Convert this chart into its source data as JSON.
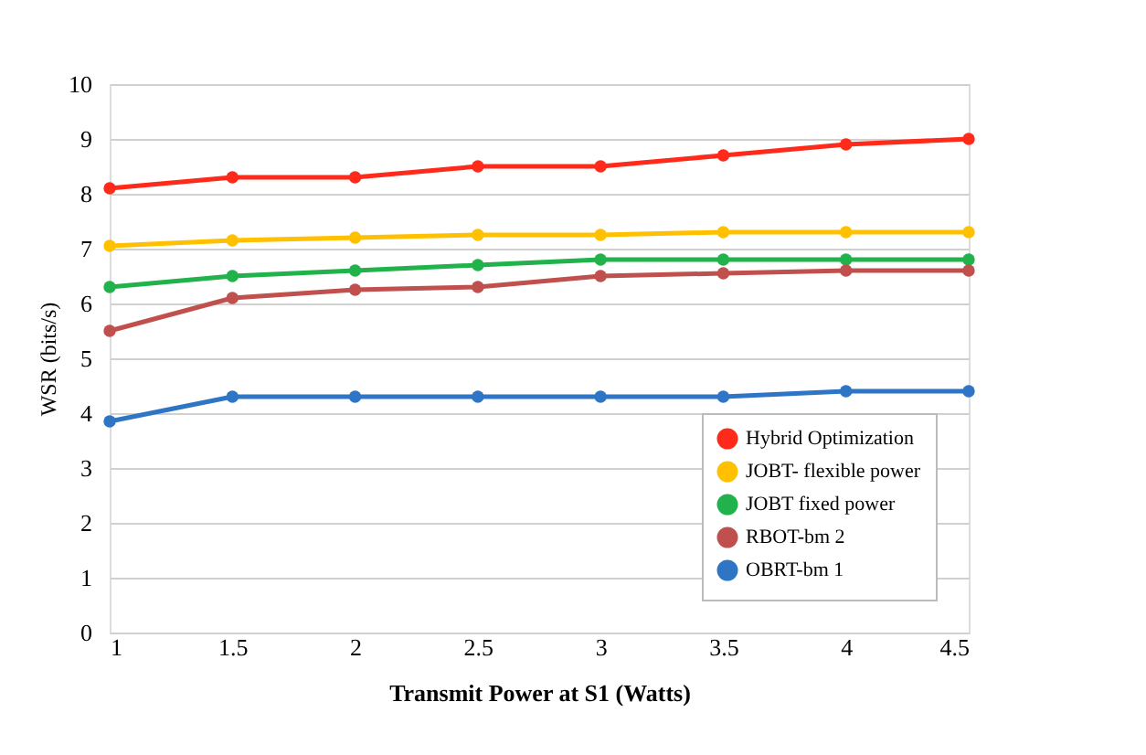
{
  "chart_data": {
    "type": "line",
    "xlabel": "Transmit Power at S1 (Watts)",
    "ylabel": "WSR (bits/s)",
    "x": [
      1,
      1.5,
      2,
      2.5,
      3,
      3.5,
      4,
      4.5
    ],
    "xlim": [
      1,
      4.5
    ],
    "xticks": [
      1,
      1.5,
      2,
      2.5,
      3,
      3.5,
      4,
      4.5
    ],
    "ylim": [
      0,
      10
    ],
    "yticks": [
      0,
      1,
      2,
      3,
      4,
      5,
      6,
      7,
      8,
      9,
      10
    ],
    "grid": "y",
    "legend": "bottom right",
    "marker": "circle",
    "line_style": "solid",
    "series": [
      {
        "name": "Hybrid Optimization",
        "color": "#ff2a1a",
        "values": [
          8.1,
          8.3,
          8.3,
          8.5,
          8.5,
          8.7,
          8.9,
          9.0
        ]
      },
      {
        "name": "JOBT- flexible power",
        "color": "#ffc000",
        "values": [
          7.05,
          7.15,
          7.2,
          7.25,
          7.25,
          7.3,
          7.3,
          7.3
        ]
      },
      {
        "name": "JOBT fixed power",
        "color": "#22b24c",
        "values": [
          6.3,
          6.5,
          6.6,
          6.7,
          6.8,
          6.8,
          6.8,
          6.8
        ]
      },
      {
        "name": "RBOT-bm 2",
        "color": "#c0504d",
        "values": [
          5.5,
          6.1,
          6.25,
          6.3,
          6.5,
          6.55,
          6.6,
          6.6
        ]
      },
      {
        "name": "OBRT-bm 1",
        "color": "#2e75c6",
        "values": [
          3.85,
          4.3,
          4.3,
          4.3,
          4.3,
          4.3,
          4.4,
          4.4
        ]
      }
    ]
  }
}
